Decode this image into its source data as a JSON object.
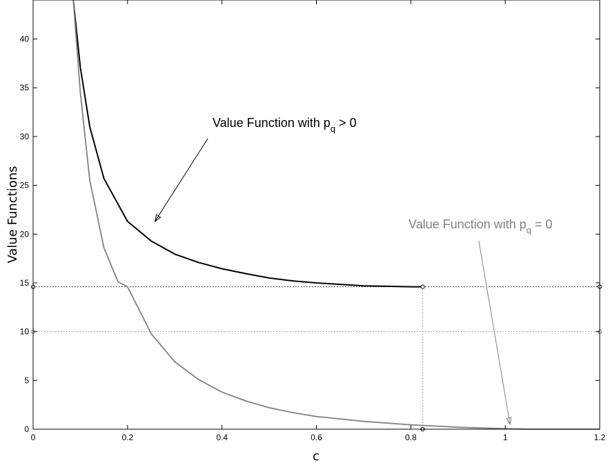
{
  "chart_data": {
    "type": "line",
    "xlabel": "c",
    "ylabel": "Value Functions",
    "xlim": [
      0,
      1.2
    ],
    "ylim": [
      0,
      44
    ],
    "x_ticks": [
      0,
      0.2,
      0.4,
      0.6,
      0.8,
      1,
      1.2
    ],
    "x_tick_labels": [
      "0",
      "0.2",
      "0.4",
      "0.6",
      "0.8",
      "1",
      "1.2"
    ],
    "y_ticks": [
      0,
      5,
      10,
      15,
      20,
      25,
      30,
      35,
      40
    ],
    "y_tick_labels": [
      "0",
      "5",
      "10",
      "15",
      "20",
      "25",
      "30",
      "35",
      "40"
    ],
    "grid": false,
    "series": [
      {
        "key": "pq_positive",
        "color": "#000000",
        "x": [
          0.085,
          0.1,
          0.12,
          0.15,
          0.2,
          0.25,
          0.3,
          0.35,
          0.4,
          0.45,
          0.5,
          0.55,
          0.6,
          0.65,
          0.7,
          0.75,
          0.8,
          0.825
        ],
        "values": [
          44,
          37.1,
          31.0,
          25.7,
          21.3,
          19.3,
          17.95,
          17.1,
          16.45,
          15.95,
          15.5,
          15.2,
          15.0,
          14.85,
          14.7,
          14.65,
          14.6,
          14.6
        ]
      },
      {
        "key": "pq_zero",
        "color": "#808080",
        "x": [
          0.085,
          0.1,
          0.12,
          0.15,
          0.18,
          0.2,
          0.25,
          0.3,
          0.35,
          0.4,
          0.45,
          0.5,
          0.55,
          0.6,
          0.7,
          0.8,
          0.9,
          1.0,
          1.05,
          1.1,
          1.2
        ],
        "values": [
          44,
          34.5,
          25.5,
          18.6,
          15.1,
          14.6,
          9.8,
          6.9,
          5.1,
          3.8,
          2.9,
          2.2,
          1.7,
          1.3,
          0.8,
          0.45,
          0.2,
          0.05,
          0.0,
          0.0,
          0.0
        ]
      }
    ],
    "reference_lines": {
      "horizontal": [
        {
          "y": 14.6,
          "color": "#000000"
        },
        {
          "y": 10,
          "color": "#808080"
        }
      ],
      "vertical": [
        {
          "x": 0.825,
          "y_to": 14.6,
          "color": "#808080"
        }
      ]
    },
    "markers": [
      {
        "x": 0,
        "y": 14.6,
        "color": "#000000"
      },
      {
        "x": 0.825,
        "y": 14.6,
        "color": "#000000"
      },
      {
        "x": 1.2,
        "y": 14.6,
        "color": "#000000"
      },
      {
        "x": 0,
        "y": 10,
        "color": "#808080"
      },
      {
        "x": 1.2,
        "y": 10,
        "color": "#808080"
      },
      {
        "x": 0.825,
        "y": 0,
        "color": "#000000"
      }
    ],
    "annotations": [
      {
        "key": "label_pos",
        "text": "Value Function with p",
        "sub": "q",
        "suffix": " > 0",
        "color": "#000000",
        "text_at": [
          0.38,
          31.0
        ],
        "arrow_from": [
          0.37,
          29.8
        ],
        "arrow_to": [
          0.258,
          21.3
        ]
      },
      {
        "key": "label_zero",
        "text": "Value Function with p",
        "sub": "q",
        "suffix": " = 0",
        "color": "#808080",
        "text_at": [
          0.795,
          20.6
        ],
        "arrow_from": [
          0.944,
          19.3
        ],
        "arrow_to": [
          1.01,
          0.5
        ]
      }
    ]
  }
}
